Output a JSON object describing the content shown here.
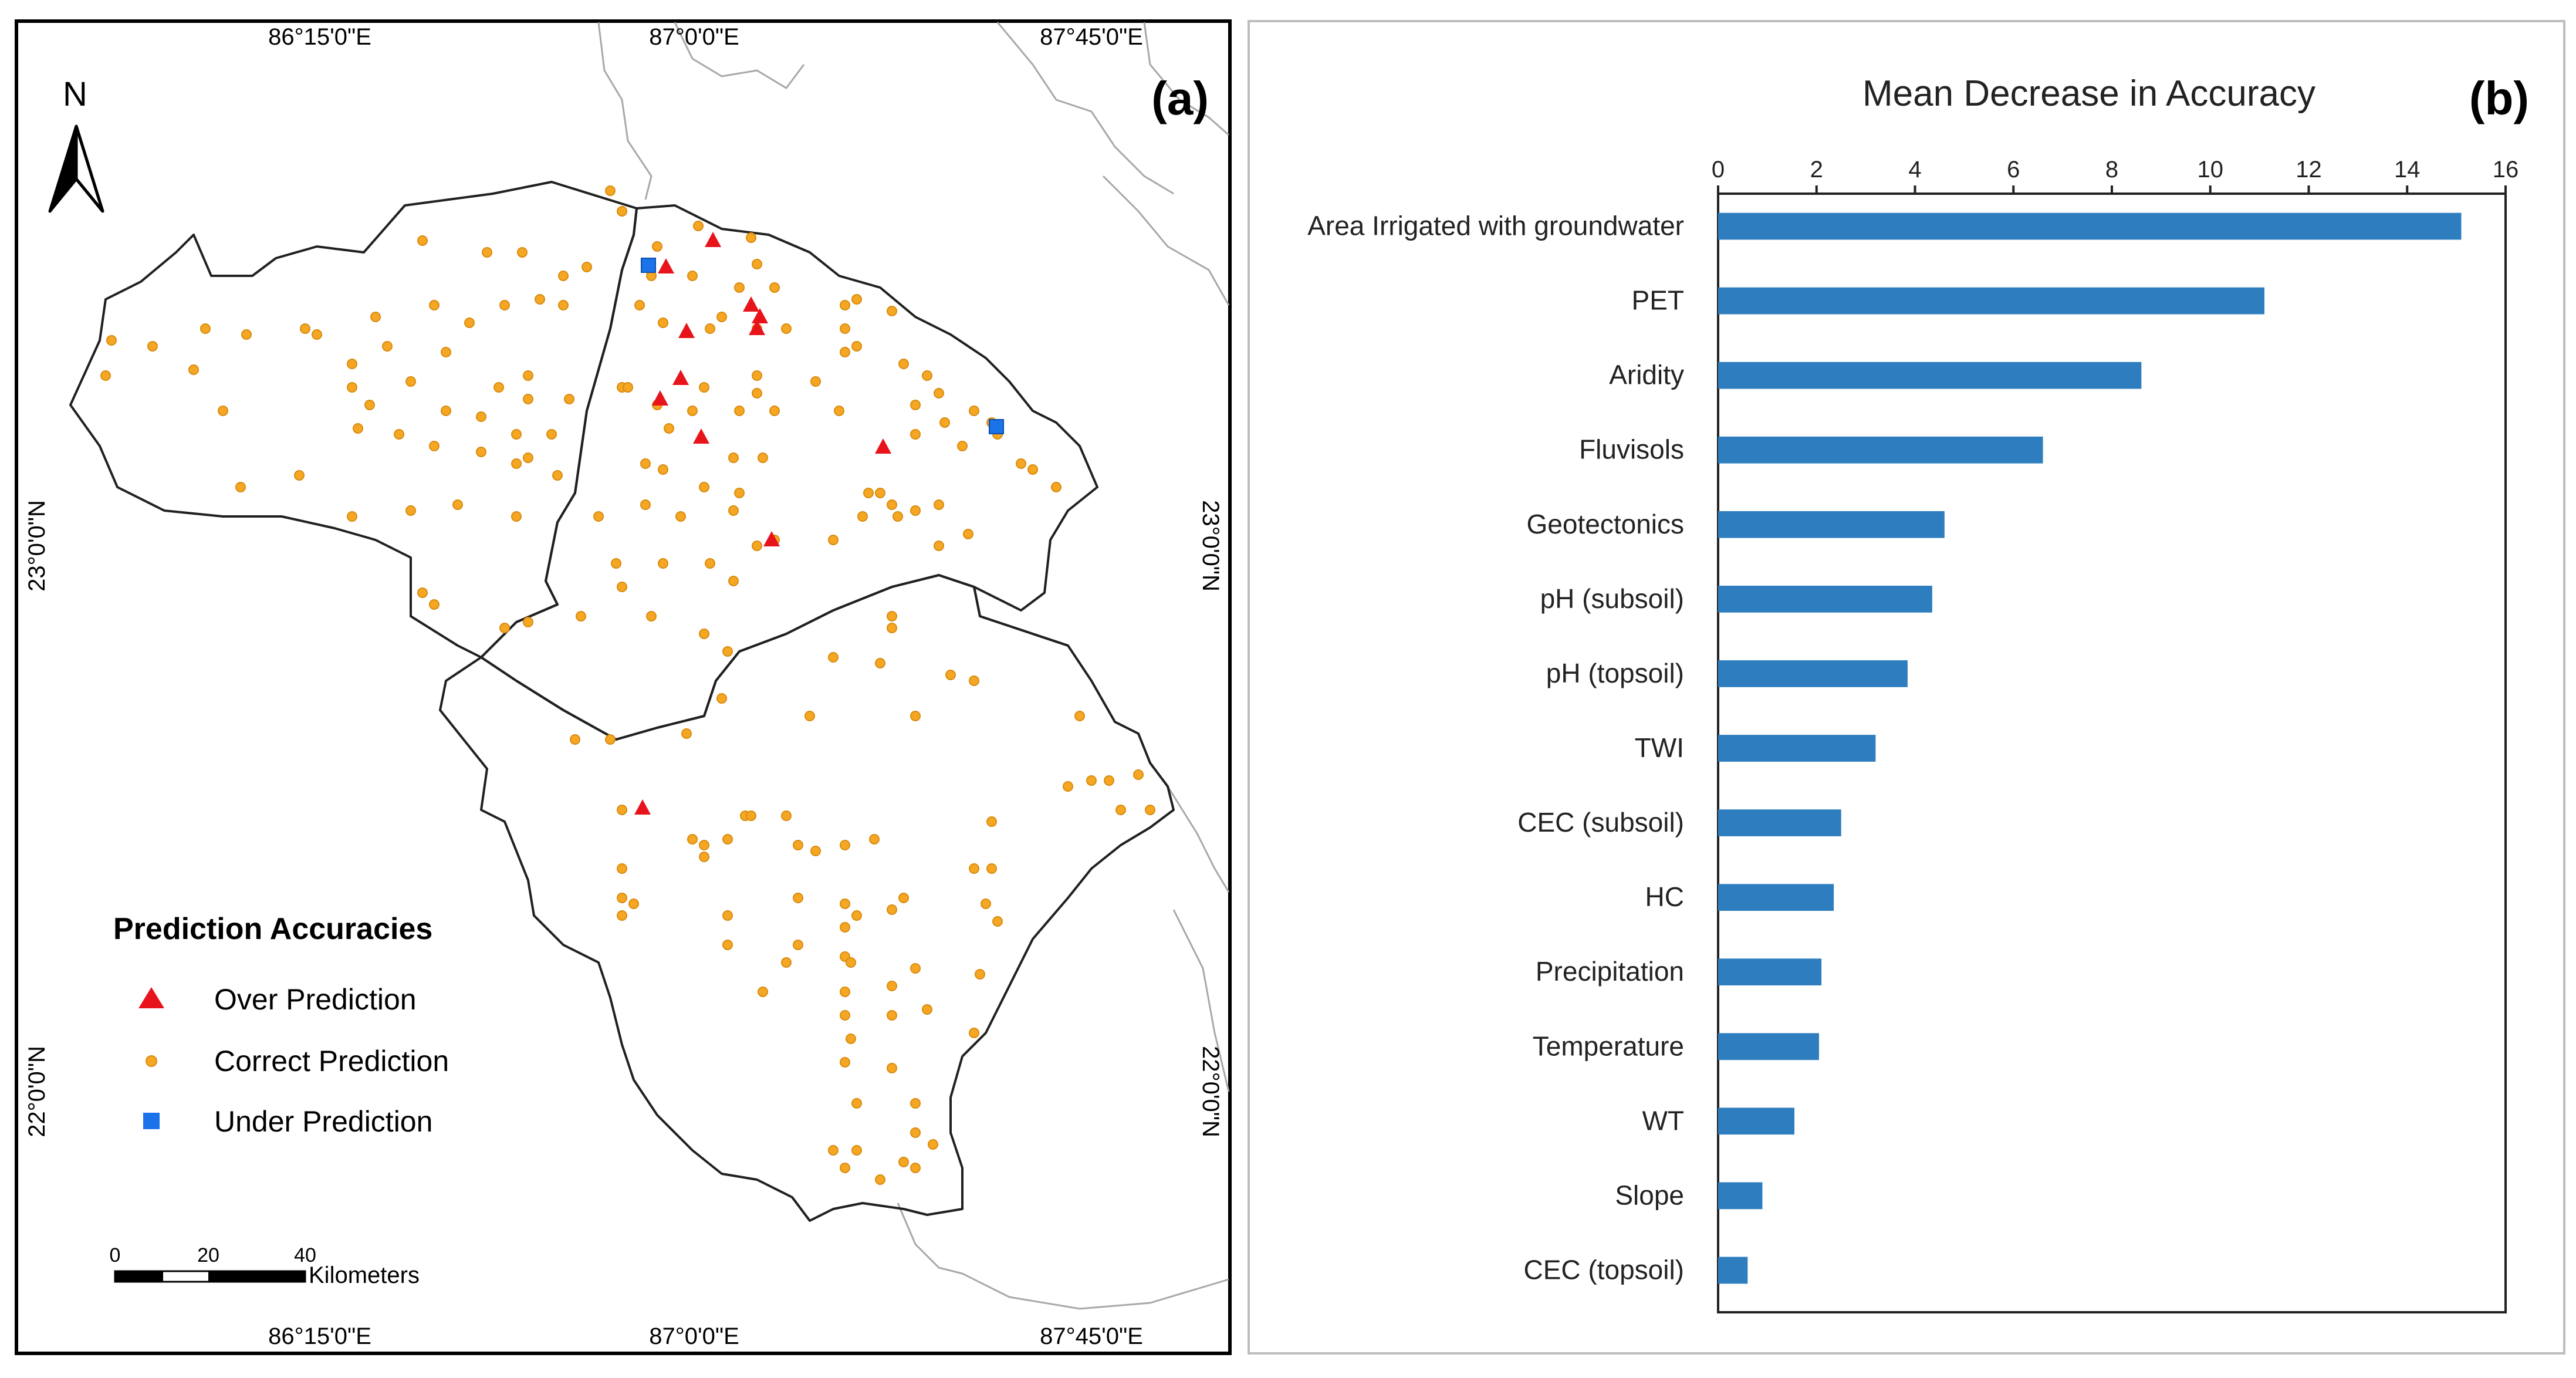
{
  "panel_a": {
    "label": "(a)",
    "north_label": "N",
    "coords": {
      "top": [
        "86°15'0\"E",
        "87°0'0\"E",
        "87°45'0\"E"
      ],
      "bottom": [
        "86°15'0\"E",
        "87°0'0\"E",
        "87°45'0\"E"
      ],
      "left": [
        "23°0'0\"N",
        "22°0'0\"N"
      ],
      "right": [
        "23°0'0\"N",
        "22°0'0\"N"
      ]
    },
    "legend": {
      "title": "Prediction Accuracies",
      "items": [
        {
          "label": "Over Prediction",
          "symbol": "triangle",
          "color": "#e8141b"
        },
        {
          "label": "Correct Prediction",
          "symbol": "dot",
          "color": "#f5a623"
        },
        {
          "label": "Under Prediction",
          "symbol": "square",
          "color": "#1a73e8"
        }
      ]
    },
    "scale_bar": {
      "ticks": [
        "0",
        "20",
        "40"
      ],
      "unit": "Kilometers"
    }
  },
  "chart_data": {
    "type": "bar",
    "orientation": "horizontal",
    "label": "(b)",
    "title": "Mean  Decrease in Accuracy",
    "xlim": [
      0,
      16
    ],
    "xticks": [
      0,
      2,
      4,
      6,
      8,
      10,
      12,
      14,
      16
    ],
    "categories": [
      "Area Irrigated with groundwater",
      "PET",
      "Aridity",
      "Fluvisols",
      "Geotectonics",
      "pH (subsoil)",
      "pH (topsoil)",
      "TWI",
      "CEC (subsoil)",
      "HC",
      "Precipitation",
      "Temperature",
      "WT",
      "Slope",
      "CEC (topsoil)"
    ],
    "values": [
      15.1,
      11.1,
      8.6,
      6.6,
      4.6,
      4.35,
      3.85,
      3.2,
      2.5,
      2.35,
      2.1,
      2.05,
      1.55,
      0.9,
      0.6
    ],
    "bar_color": "#2e7ebf"
  }
}
